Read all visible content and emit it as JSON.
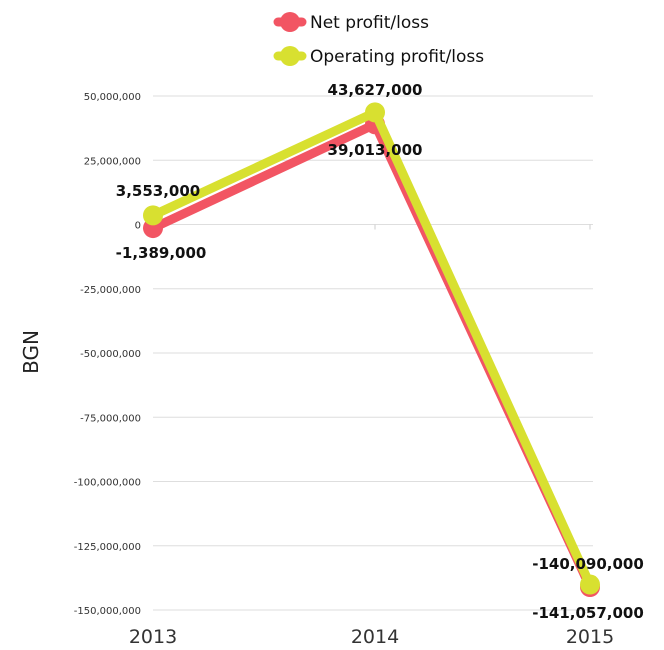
{
  "chart_data": {
    "type": "line",
    "title": "",
    "xlabel": "",
    "ylabel": "BGN",
    "categories": [
      "2013",
      "2014",
      "2015"
    ],
    "ylim": [
      -150000000,
      50000000
    ],
    "yticks": [
      50000000,
      25000000,
      0,
      -25000000,
      -50000000,
      -75000000,
      -100000000,
      -125000000,
      -150000000
    ],
    "ytick_labels": [
      "50,000,000",
      "25,000,000",
      "0",
      "-25,000,000",
      "-50,000,000",
      "-75,000,000",
      "-100,000,000",
      "-125,000,000",
      "-150,000,000"
    ],
    "grid": true,
    "legend_position": "top",
    "series": [
      {
        "name": "Net profit/loss",
        "color": "#f25563",
        "values": [
          -1389000,
          39013000,
          -141057000
        ],
        "labels": [
          "-1,389,000",
          "39,013,000",
          "-141,057,000"
        ]
      },
      {
        "name": "Operating profit/loss",
        "color": "#d8e030",
        "values": [
          3553000,
          43627000,
          -140090000
        ],
        "labels": [
          "3,553,000",
          "43,627,000",
          "-140,090,000"
        ]
      }
    ]
  }
}
